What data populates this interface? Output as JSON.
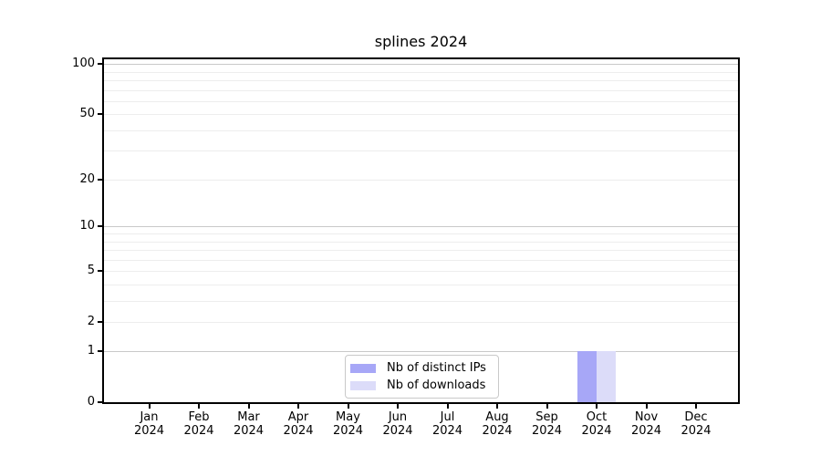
{
  "title": "splines 2024",
  "chart_data": {
    "type": "bar",
    "title": "splines 2024",
    "categories": [
      "Jan",
      "Feb",
      "Mar",
      "Apr",
      "May",
      "Jun",
      "Jul",
      "Aug",
      "Sep",
      "Oct",
      "Nov",
      "Dec"
    ],
    "year_label": "2024",
    "series": [
      {
        "name": "Nb of distinct IPs",
        "color": "#a7a7f7",
        "values": [
          0,
          0,
          0,
          0,
          0,
          0,
          0,
          0,
          0,
          1,
          0,
          0
        ]
      },
      {
        "name": "Nb of downloads",
        "color": "#dcdcf9",
        "values": [
          0,
          0,
          0,
          0,
          0,
          0,
          0,
          0,
          0,
          1,
          0,
          0
        ]
      }
    ],
    "yscale": "log1p",
    "ylim": [
      0,
      107
    ],
    "ytick_labels": [
      0,
      1,
      2,
      5,
      10,
      20,
      50,
      100
    ],
    "grid_minor_values": [
      2,
      3,
      4,
      5,
      6,
      7,
      8,
      9,
      20,
      30,
      40,
      50,
      60,
      70,
      80,
      90
    ],
    "grid_major_values": [
      1,
      10,
      100
    ],
    "grid_minor_color": "#ededed",
    "grid_major_color": "#c9c9c9",
    "legend_position": "bottom-center",
    "axis_color": "#000000",
    "background_color": "#ffffff"
  }
}
